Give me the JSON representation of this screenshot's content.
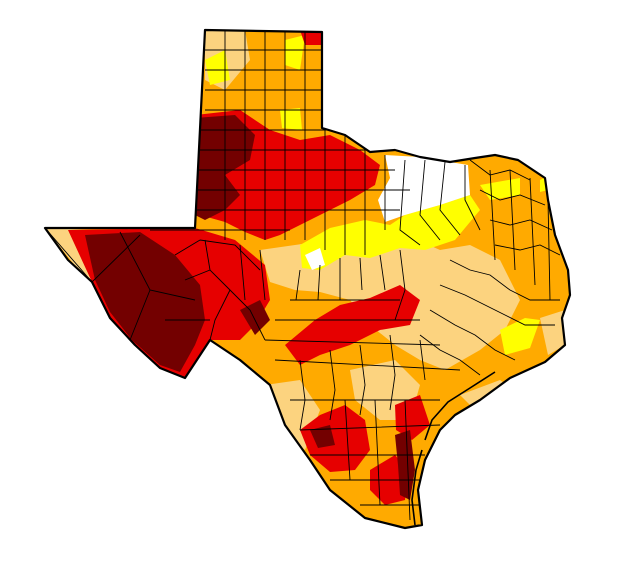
{
  "map": {
    "region": "Texas",
    "subdivisions": "counties",
    "drought_levels": [
      {
        "level": "none",
        "color": "#ffffff"
      },
      {
        "level": "D0",
        "color": "#ffff00"
      },
      {
        "level": "D1",
        "color": "#fcd37f"
      },
      {
        "level": "D2",
        "color": "#ffaa00"
      },
      {
        "level": "D3",
        "color": "#e60000"
      },
      {
        "level": "D4",
        "color": "#730000"
      }
    ],
    "border_color": "#000000",
    "background": "#ffffff"
  }
}
